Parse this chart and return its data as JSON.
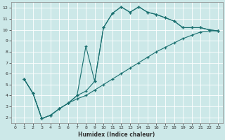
{
  "xlabel": "Humidex (Indice chaleur)",
  "bg_color": "#cce8e8",
  "line_color": "#1a7070",
  "grid_color": "#b0d4d4",
  "xlim": [
    -0.5,
    23.5
  ],
  "ylim": [
    1.5,
    12.5
  ],
  "xticks": [
    0,
    1,
    2,
    3,
    4,
    5,
    6,
    7,
    8,
    9,
    10,
    11,
    12,
    13,
    14,
    15,
    16,
    17,
    18,
    19,
    20,
    21,
    22,
    23
  ],
  "yticks": [
    2,
    3,
    4,
    5,
    6,
    7,
    8,
    9,
    10,
    11,
    12
  ],
  "line1_x": [
    1,
    2,
    3,
    4,
    5,
    6,
    7,
    8,
    9,
    10,
    11,
    12,
    13,
    14,
    15,
    16,
    17,
    18,
    19,
    20,
    21,
    22,
    23
  ],
  "line1_y": [
    5.5,
    4.2,
    1.9,
    2.2,
    2.8,
    3.3,
    4.0,
    8.5,
    5.3,
    10.2,
    11.5,
    12.1,
    11.6,
    12.1,
    11.6,
    11.4,
    11.1,
    10.8,
    10.2,
    10.2,
    10.2,
    10.0,
    9.9
  ],
  "line2_x": [
    1,
    2,
    3,
    4,
    5,
    6,
    7,
    8,
    9,
    10,
    11,
    12,
    13,
    14,
    15,
    16,
    17,
    18,
    19,
    20,
    21,
    22,
    23
  ],
  "line2_y": [
    5.5,
    4.2,
    1.9,
    2.2,
    2.8,
    3.3,
    4.0,
    4.4,
    5.3,
    10.2,
    11.5,
    12.1,
    11.6,
    12.1,
    11.6,
    11.4,
    11.1,
    10.8,
    10.2,
    10.2,
    10.2,
    10.0,
    9.9
  ],
  "line3_x": [
    1,
    2,
    3,
    4,
    5,
    6,
    7,
    8,
    9,
    10,
    11,
    12,
    13,
    14,
    15,
    16,
    17,
    18,
    19,
    20,
    21,
    22,
    23
  ],
  "line3_y": [
    5.5,
    4.2,
    1.9,
    2.2,
    2.8,
    3.3,
    3.7,
    4.0,
    4.5,
    5.0,
    5.5,
    6.0,
    6.5,
    7.0,
    7.5,
    8.0,
    8.4,
    8.8,
    9.2,
    9.5,
    9.8,
    9.9,
    9.9
  ]
}
